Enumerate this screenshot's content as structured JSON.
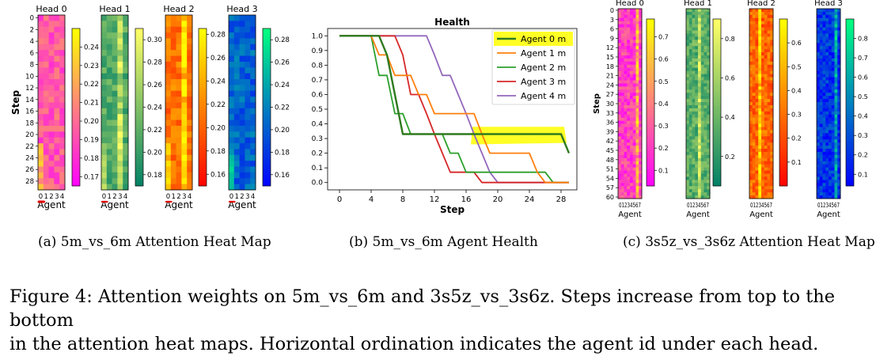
{
  "captions": {
    "a": "(a)  5m_vs_6m Attention Heat Map",
    "b": "(b)  5m_vs_6m Agent Health",
    "c": "(c)  3s5z_vs_3s6z Attention Heat Map",
    "main_line1": "Figure 4: Attention weights on 5m_vs_6m and 3s5z_vs_3s6z. Steps increase from top to the bottom",
    "main_line2": "in the attention heat maps. Horizontal ordination indicates the agent id under each head."
  },
  "chart_data": [
    {
      "type": "heatmap",
      "panel": "a",
      "ylabel": "Step",
      "xlabel": "Agent",
      "y_ticks": [
        "0",
        "2",
        "4",
        "6",
        "8",
        "10",
        "12",
        "14",
        "16",
        "18",
        "20",
        "22",
        "24",
        "26",
        "28"
      ],
      "x_ticks": [
        "0",
        "1",
        "2",
        "3",
        "4"
      ],
      "heads": [
        {
          "title": "Head 0",
          "colormap": "spring",
          "colorbar_ticks": [
            "0.24",
            "0.23",
            "0.22",
            "0.21",
            "0.20",
            "0.19",
            "0.18",
            "0.17"
          ],
          "vmin": 0.165,
          "vmax": 0.25
        },
        {
          "title": "Head 1",
          "colormap": "summer",
          "colorbar_ticks": [
            "0.30",
            "0.28",
            "0.26",
            "0.24",
            "0.22",
            "0.20",
            "0.18"
          ],
          "vmin": 0.17,
          "vmax": 0.31
        },
        {
          "title": "Head 2",
          "colormap": "autumn",
          "colorbar_ticks": [
            "0.28",
            "0.26",
            "0.24",
            "0.22",
            "0.20",
            "0.18",
            "0.16"
          ],
          "vmin": 0.15,
          "vmax": 0.285
        },
        {
          "title": "Head 3",
          "colormap": "winter",
          "colorbar_ticks": [
            "0.28",
            "0.26",
            "0.24",
            "0.22",
            "0.20",
            "0.18",
            "0.16"
          ],
          "vmin": 0.15,
          "vmax": 0.29
        }
      ]
    },
    {
      "type": "line",
      "panel": "b",
      "title": "Health",
      "xlabel": "Step",
      "ylabel": "",
      "x_ticks": [
        "0",
        "4",
        "8",
        "12",
        "16",
        "20",
        "24",
        "28"
      ],
      "y_ticks": [
        "0.0",
        "0.1",
        "0.2",
        "0.3",
        "0.4",
        "0.5",
        "0.6",
        "0.7",
        "0.8",
        "0.9",
        "1.0"
      ],
      "xlim": [
        -1.5,
        30
      ],
      "ylim": [
        -0.05,
        1.05
      ],
      "legend_position": "top-right",
      "series": [
        {
          "name": "Agent 0 m",
          "color": "#2f7a1f",
          "width": 2.4,
          "x": [
            0,
            4,
            5,
            6,
            7,
            8,
            9,
            10,
            11,
            12,
            13,
            14,
            15,
            16,
            17,
            18,
            19,
            20,
            21,
            22,
            23,
            24,
            25,
            26,
            27,
            28,
            29
          ],
          "y": [
            1,
            1,
            1,
            0.87,
            0.6,
            0.33,
            0.33,
            0.33,
            0.33,
            0.33,
            0.33,
            0.33,
            0.33,
            0.33,
            0.33,
            0.33,
            0.33,
            0.33,
            0.33,
            0.33,
            0.33,
            0.33,
            0.33,
            0.33,
            0.33,
            0.33,
            0.2
          ]
        },
        {
          "name": "Agent 1 m",
          "color": "#ff7f0e",
          "width": 1.8,
          "x": [
            0,
            4,
            5,
            6,
            7,
            8,
            9,
            10,
            11,
            12,
            13,
            14,
            15,
            16,
            17,
            18,
            19,
            20,
            21,
            22,
            23,
            24,
            25,
            26,
            27,
            28,
            29
          ],
          "y": [
            1,
            1,
            0.87,
            0.87,
            0.73,
            0.73,
            0.73,
            0.6,
            0.6,
            0.47,
            0.47,
            0.47,
            0.47,
            0.47,
            0.47,
            0.33,
            0.2,
            0.2,
            0.2,
            0.2,
            0.2,
            0.2,
            0.07,
            0.0,
            0.0,
            0.0,
            0.0
          ]
        },
        {
          "name": "Agent 2 m",
          "color": "#2ca02c",
          "width": 1.8,
          "x": [
            0,
            4,
            5,
            6,
            7,
            8,
            9,
            10,
            11,
            12,
            13,
            14,
            15,
            16,
            17,
            18,
            19,
            20,
            21,
            22,
            23,
            24,
            25,
            26,
            27,
            28,
            29
          ],
          "y": [
            1,
            1,
            0.73,
            0.73,
            0.47,
            0.47,
            0.33,
            0.33,
            0.33,
            0.33,
            0.33,
            0.2,
            0.2,
            0.07,
            0.07,
            0.07,
            0.07,
            0.07,
            0.07,
            0.07,
            0.07,
            0.07,
            0.07,
            0.07,
            0.0,
            0.0,
            0.0
          ]
        },
        {
          "name": "Agent 3 m",
          "color": "#d62728",
          "width": 1.8,
          "x": [
            0,
            4,
            5,
            6,
            7,
            8,
            9,
            10,
            11,
            12,
            13,
            14,
            15,
            16,
            17,
            18,
            19,
            20,
            21,
            22,
            23,
            24,
            25,
            26,
            27,
            28,
            29
          ],
          "y": [
            1,
            1,
            1,
            1,
            1,
            0.87,
            0.6,
            0.6,
            0.47,
            0.33,
            0.2,
            0.07,
            0.07,
            0.07,
            0.07,
            0.0,
            0.0,
            0.0,
            0.0,
            0.0,
            0.0,
            0.0,
            0.0,
            0.0,
            0.0,
            0.0,
            0.0
          ]
        },
        {
          "name": "Agent 4 m",
          "color": "#9467bd",
          "width": 1.8,
          "x": [
            0,
            4,
            5,
            6,
            7,
            8,
            9,
            10,
            11,
            12,
            13,
            14,
            15,
            16,
            17,
            18,
            19,
            20,
            21,
            22,
            23,
            24,
            25,
            26,
            27,
            28,
            29
          ],
          "y": [
            1,
            1,
            1,
            1,
            1,
            1,
            1,
            1,
            1,
            0.87,
            0.73,
            0.73,
            0.6,
            0.47,
            0.33,
            0.2,
            0.07,
            0.0,
            0.0,
            0.0,
            0.0,
            0.0,
            0.0,
            0.0,
            0.0,
            0.0,
            0.0
          ]
        }
      ]
    },
    {
      "type": "heatmap",
      "panel": "c",
      "ylabel": "Step",
      "xlabel": "Agent",
      "y_ticks": [
        "0",
        "3",
        "6",
        "9",
        "12",
        "15",
        "18",
        "21",
        "24",
        "27",
        "30",
        "33",
        "36",
        "39",
        "42",
        "45",
        "48",
        "51",
        "54",
        "57",
        "60"
      ],
      "x_tick_label": "01234567",
      "heads": [
        {
          "title": "Head 0",
          "colormap": "spring",
          "colorbar_ticks": [
            "0.7",
            "0.6",
            "0.5",
            "0.4",
            "0.3",
            "0.2",
            "0.1"
          ],
          "vmin": 0.03,
          "vmax": 0.78
        },
        {
          "title": "Head 1",
          "colormap": "summer",
          "colorbar_ticks": [
            "0.8",
            "0.6",
            "0.4",
            "0.2"
          ],
          "vmin": 0.05,
          "vmax": 0.9
        },
        {
          "title": "Head 2",
          "colormap": "autumn",
          "colorbar_ticks": [
            "0.6",
            "0.5",
            "0.4",
            "0.3",
            "0.2",
            "0.1"
          ],
          "vmin": 0.0,
          "vmax": 0.7
        },
        {
          "title": "Head 3",
          "colormap": "winter",
          "colorbar_ticks": [
            "0.8",
            "0.7",
            "0.6",
            "0.5",
            "0.4",
            "0.3",
            "0.2",
            "0.1"
          ],
          "vmin": 0.04,
          "vmax": 0.9
        }
      ]
    }
  ]
}
